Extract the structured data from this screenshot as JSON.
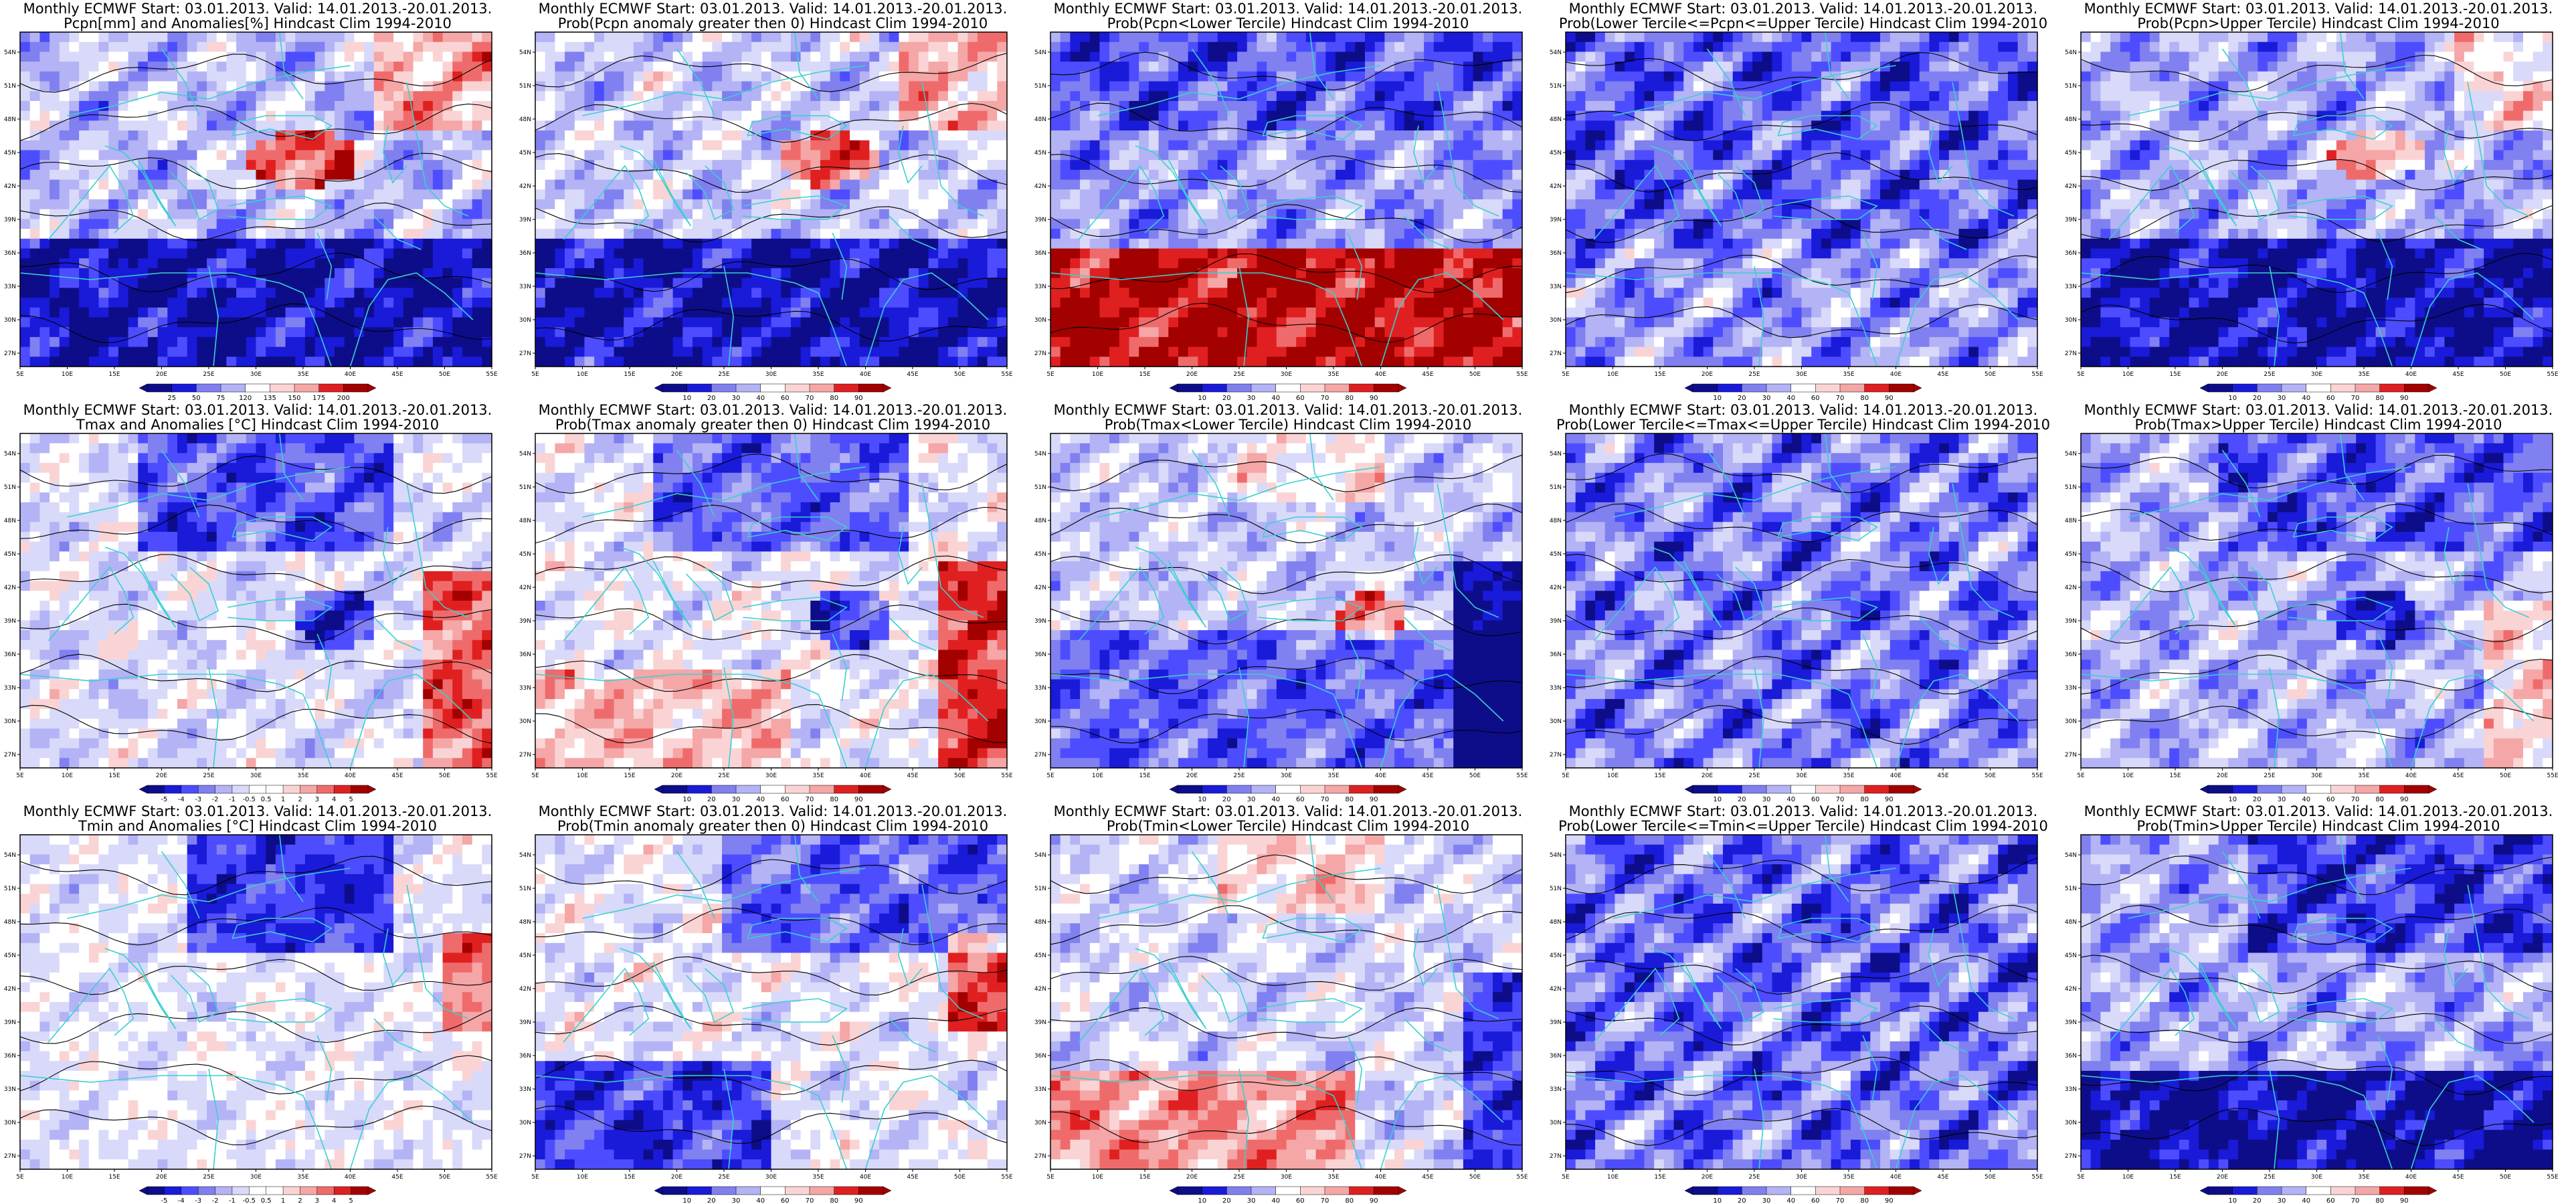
{
  "rows": [
    {
      "variable": "precipitation",
      "panels": [
        {
          "t1": "Monthly ECMWF Start: 03.01.2013. Valid: 14.01.2013.-20.01.2013.",
          "t2": "Pcpn[mm] and Anomalies[%] Hindcast Clim 1994-2010",
          "pattern": "pcpn-anom",
          "colorbar": [
            "25",
            "50",
            "75",
            "120",
            "135",
            "150",
            "175",
            "200"
          ]
        },
        {
          "t1": "Monthly ECMWF Start: 03.01.2013. Valid: 14.01.2013.-20.01.2013.",
          "t2": "Prob(Pcpn anomaly greater then 0) Hindcast Clim 1994-2010",
          "pattern": "pcpn-gt0",
          "colorbar": [
            "10",
            "20",
            "30",
            "40",
            "60",
            "70",
            "80",
            "90"
          ]
        },
        {
          "t1": "Monthly ECMWF Start: 03.01.2013. Valid: 14.01.2013.-20.01.2013.",
          "t2": "Prob(Pcpn<Lower Tercile) Hindcast Clim 1994-2010",
          "pattern": "pcpn-lower",
          "colorbar": [
            "10",
            "20",
            "30",
            "40",
            "60",
            "70",
            "80",
            "90"
          ]
        },
        {
          "t1": "Monthly ECMWF Start: 03.01.2013. Valid: 14.01.2013.-20.01.2013.",
          "t2": "Prob(Lower Tercile<=Pcpn<=Upper Tercile) Hindcast Clim 1994-2010",
          "pattern": "pcpn-mid",
          "colorbar": [
            "10",
            "20",
            "30",
            "40",
            "60",
            "70",
            "80",
            "90"
          ]
        },
        {
          "t1": "Monthly ECMWF Start: 03.01.2013. Valid: 14.01.2013.-20.01.2013.",
          "t2": "Prob(Pcpn>Upper Tercile) Hindcast Clim 1994-2010",
          "pattern": "pcpn-upper",
          "colorbar": [
            "10",
            "20",
            "30",
            "40",
            "60",
            "70",
            "80",
            "90"
          ]
        }
      ]
    },
    {
      "variable": "tmax",
      "panels": [
        {
          "t1": "Monthly ECMWF Start: 03.01.2013. Valid: 14.01.2013.-20.01.2013.",
          "t2": "Tmax and Anomalies [°C] Hindcast Clim 1994-2010",
          "pattern": "tmax-anom",
          "colorbar": [
            "-5",
            "-4",
            "-3",
            "-2",
            "-1",
            "-0.5",
            "0.5",
            "1",
            "2",
            "3",
            "4",
            "5"
          ]
        },
        {
          "t1": "Monthly ECMWF Start: 03.01.2013. Valid: 14.01.2013.-20.01.2013.",
          "t2": "Prob(Tmax anomaly greater then 0) Hindcast Clim 1994-2010",
          "pattern": "tmax-gt0",
          "colorbar": [
            "10",
            "20",
            "30",
            "40",
            "60",
            "70",
            "80",
            "90"
          ]
        },
        {
          "t1": "Monthly ECMWF Start: 03.01.2013. Valid: 14.01.2013.-20.01.2013.",
          "t2": "Prob(Tmax<Lower Tercile) Hindcast Clim 1994-2010",
          "pattern": "tmax-lower",
          "colorbar": [
            "10",
            "20",
            "30",
            "40",
            "60",
            "70",
            "80",
            "90"
          ]
        },
        {
          "t1": "Monthly ECMWF Start: 03.01.2013. Valid: 14.01.2013.-20.01.2013.",
          "t2": "Prob(Lower Tercile<=Tmax<=Upper Tercile) Hindcast Clim 1994-2010",
          "pattern": "tmax-mid",
          "colorbar": [
            "10",
            "20",
            "30",
            "40",
            "60",
            "70",
            "80",
            "90"
          ]
        },
        {
          "t1": "Monthly ECMWF Start: 03.01.2013. Valid: 14.01.2013.-20.01.2013.",
          "t2": "Prob(Tmax>Upper Tercile) Hindcast Clim 1994-2010",
          "pattern": "tmax-upper",
          "colorbar": [
            "10",
            "20",
            "30",
            "40",
            "60",
            "70",
            "80",
            "90"
          ]
        }
      ]
    },
    {
      "variable": "tmin",
      "panels": [
        {
          "t1": "Monthly ECMWF Start: 03.01.2013. Valid: 14.01.2013.-20.01.2013.",
          "t2": "Tmin and Anomalies [°C] Hindcast Clim 1994-2010",
          "pattern": "tmin-anom",
          "colorbar": [
            "-5",
            "-4",
            "-3",
            "-2",
            "-1",
            "-0.5",
            "0.5",
            "1",
            "2",
            "3",
            "4",
            "5"
          ]
        },
        {
          "t1": "Monthly ECMWF Start: 03.01.2013. Valid: 14.01.2013.-20.01.2013.",
          "t2": "Prob(Tmin anomaly greater then 0) Hindcast Clim 1994-2010",
          "pattern": "tmin-gt0",
          "colorbar": [
            "10",
            "20",
            "30",
            "40",
            "60",
            "70",
            "80",
            "90"
          ]
        },
        {
          "t1": "Monthly ECMWF Start: 03.01.2013. Valid: 14.01.2013.-20.01.2013.",
          "t2": "Prob(Tmin<Lower Tercile) Hindcast Clim 1994-2010",
          "pattern": "tmin-lower",
          "colorbar": [
            "10",
            "20",
            "30",
            "40",
            "60",
            "70",
            "80",
            "90"
          ]
        },
        {
          "t1": "Monthly ECMWF Start: 03.01.2013. Valid: 14.01.2013.-20.01.2013.",
          "t2": "Prob(Lower Tercile<=Tmin<=Upper Tercile) Hindcast Clim 1994-2010",
          "pattern": "tmin-mid",
          "colorbar": [
            "10",
            "20",
            "30",
            "40",
            "60",
            "70",
            "80",
            "90"
          ]
        },
        {
          "t1": "Monthly ECMWF Start: 03.01.2013. Valid: 14.01.2013.-20.01.2013.",
          "t2": "Prob(Tmin>Upper Tercile) Hindcast Clim 1994-2010",
          "pattern": "tmin-upper",
          "colorbar": [
            "10",
            "20",
            "30",
            "40",
            "60",
            "70",
            "80",
            "90"
          ]
        }
      ]
    }
  ],
  "axes": {
    "x_ticks": [
      "5E",
      "10E",
      "15E",
      "20E",
      "25E",
      "30E",
      "35E",
      "40E",
      "45E",
      "50E",
      "55E"
    ],
    "y_ticks": [
      "27N",
      "30N",
      "33N",
      "36N",
      "39N",
      "42N",
      "45N",
      "48N",
      "51N",
      "54N"
    ]
  },
  "colors": {
    "palette": [
      "#0d0d8a",
      "#1a1ad9",
      "#4d4dff",
      "#8080f0",
      "#b3b3f5",
      "#d9d9fa",
      "#ffffff",
      "#fad4d4",
      "#f5a6a6",
      "#ef6b6b",
      "#e02020",
      "#a30000"
    ],
    "coastline": "#3ad0d0",
    "contour": "#000000"
  }
}
